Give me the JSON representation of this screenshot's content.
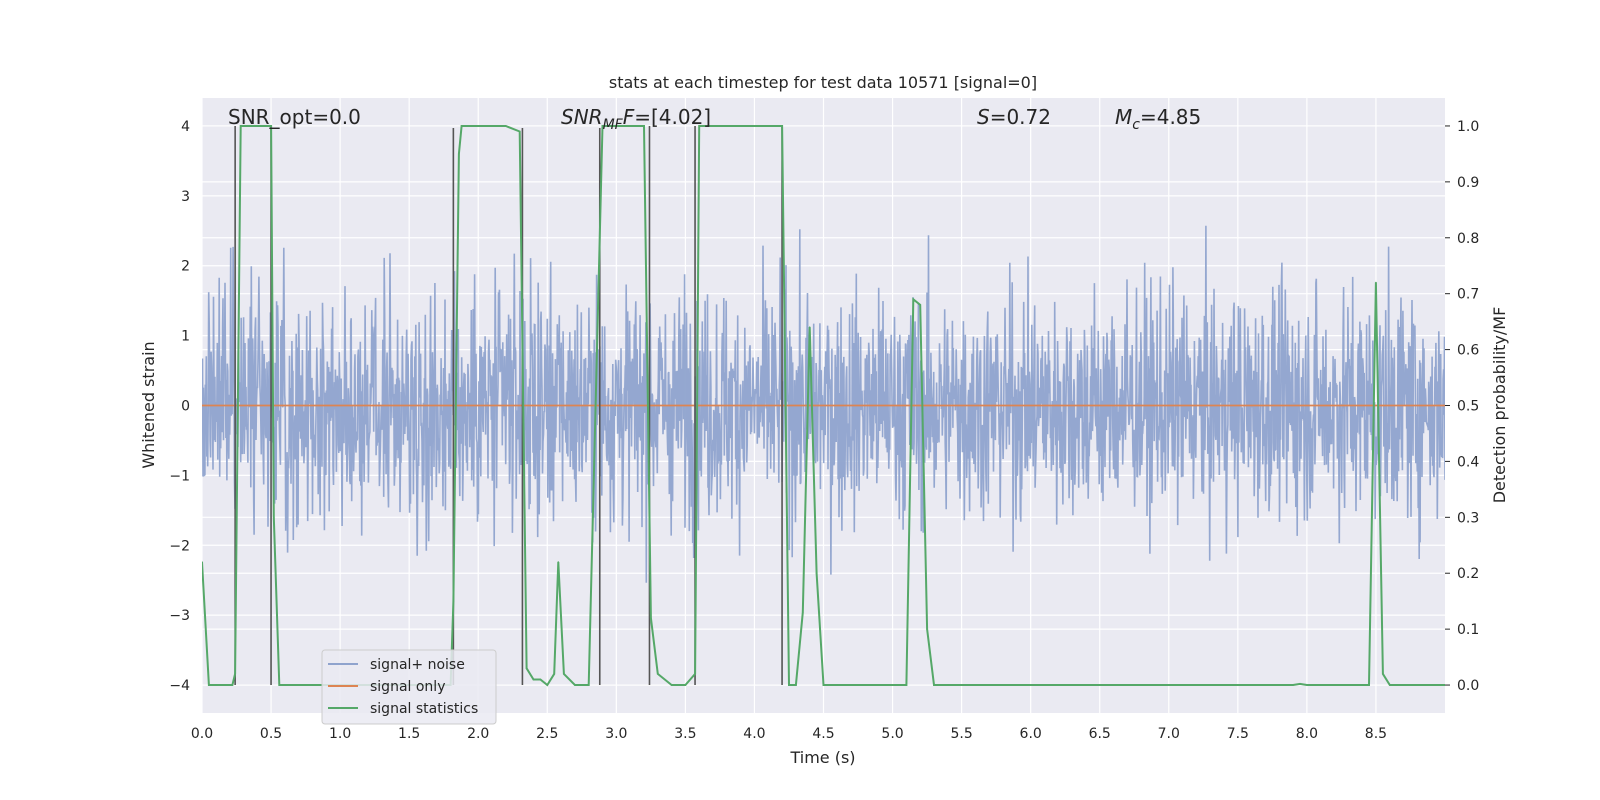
{
  "chart_data": {
    "type": "line",
    "title": "stats at each timestep for test data 10571 [signal=0]",
    "xlabel": "Time (s)",
    "ylabel": "Whitened strain",
    "ylabel_right": "Detection probability/MF",
    "xlim": [
      0,
      9.0
    ],
    "ylim": [
      -4.4,
      4.4
    ],
    "ylim_right": [
      -0.05,
      1.05
    ],
    "grid": true,
    "legend_position": "lower-left",
    "x_ticks": [
      "0.0",
      "0.5",
      "1.0",
      "1.5",
      "2.0",
      "2.5",
      "3.0",
      "3.5",
      "4.0",
      "4.5",
      "5.0",
      "5.5",
      "6.0",
      "6.5",
      "7.0",
      "7.5",
      "8.0",
      "8.5"
    ],
    "y_ticks": [
      "−4",
      "−3",
      "−2",
      "−1",
      "0",
      "1",
      "2",
      "3",
      "4"
    ],
    "y_ticks_right": [
      "0.0",
      "0.1",
      "0.2",
      "0.3",
      "0.4",
      "0.5",
      "0.6",
      "0.7",
      "0.8",
      "0.9",
      "1.0"
    ],
    "annotations": {
      "snr_opt": "SNR_opt=0.0",
      "snr_mf_sym": "SNR",
      "snr_mf_sub": "MF",
      "snr_mf_val": "=[4.02]",
      "s_sym": "S",
      "s_val": "=0.72",
      "mc_sym": "M",
      "mc_sub": "c",
      "mc_val": "=4.85"
    },
    "colors": {
      "noise": "#8fa3cd",
      "signal": "#dd8452",
      "stats": "#55a868",
      "markers": "#555555",
      "background": "#eaeaf2",
      "grid": "#ffffff"
    },
    "series": [
      {
        "name": "signal+ noise",
        "description_note": "noisy whitened strain, roughly gaussian with sigma ~0.8, spikes up to about ±3.5",
        "sigma": 0.8
      },
      {
        "name": "signal only",
        "constant_value": 0
      },
      {
        "name": "signal statistics",
        "x": [
          0.0,
          0.05,
          0.1,
          0.2,
          0.22,
          0.24,
          0.28,
          0.3,
          0.5,
          0.52,
          0.56,
          0.6,
          0.8,
          0.9,
          1.0,
          1.2,
          1.4,
          1.6,
          1.8,
          1.82,
          1.86,
          1.88,
          2.2,
          2.3,
          2.35,
          2.4,
          2.45,
          2.5,
          2.55,
          2.58,
          2.62,
          2.7,
          2.8,
          2.9,
          2.95,
          3.2,
          3.25,
          3.3,
          3.4,
          3.5,
          3.57,
          3.6,
          4.2,
          4.25,
          4.3,
          4.35,
          4.4,
          4.45,
          4.5,
          4.55,
          4.6,
          5.1,
          5.15,
          5.2,
          5.25,
          5.3,
          5.4,
          6.0,
          7.0,
          7.9,
          7.95,
          8.0,
          8.4,
          8.45,
          8.5,
          8.55,
          8.6,
          8.65,
          8.7,
          9.0
        ],
        "y": [
          0.22,
          0.0,
          0.0,
          0.0,
          0.0,
          0.02,
          1.0,
          1.0,
          1.0,
          0.3,
          0.0,
          0.0,
          0.0,
          0.0,
          0.0,
          0.0,
          0.0,
          0.0,
          0.0,
          0.15,
          0.95,
          1.0,
          1.0,
          0.99,
          0.03,
          0.01,
          0.01,
          0.0,
          0.02,
          0.22,
          0.02,
          0.0,
          0.0,
          1.0,
          1.0,
          1.0,
          0.12,
          0.02,
          0.0,
          0.0,
          0.02,
          1.0,
          1.0,
          0.0,
          0.0,
          0.13,
          0.64,
          0.2,
          0.0,
          0.0,
          0.0,
          0.0,
          0.69,
          0.68,
          0.1,
          0.0,
          0.0,
          0.0,
          0.0,
          0.0,
          0.002,
          0.0,
          0.0,
          0.0,
          0.72,
          0.02,
          0.0,
          0.0,
          0.0,
          0.0
        ]
      },
      {
        "name": "trigger markers",
        "x": [
          0.24,
          0.5,
          1.82,
          2.32,
          2.88,
          3.24,
          3.57,
          4.2
        ],
        "y_top": [
          4.0,
          4.0,
          3.97,
          3.97,
          3.97,
          4.0,
          4.0,
          4.0
        ],
        "y_bottom": [
          -4.0,
          -4.0,
          -4.0,
          -4.0,
          -4.0,
          -4.0,
          -4.0,
          -4.0
        ]
      }
    ]
  }
}
